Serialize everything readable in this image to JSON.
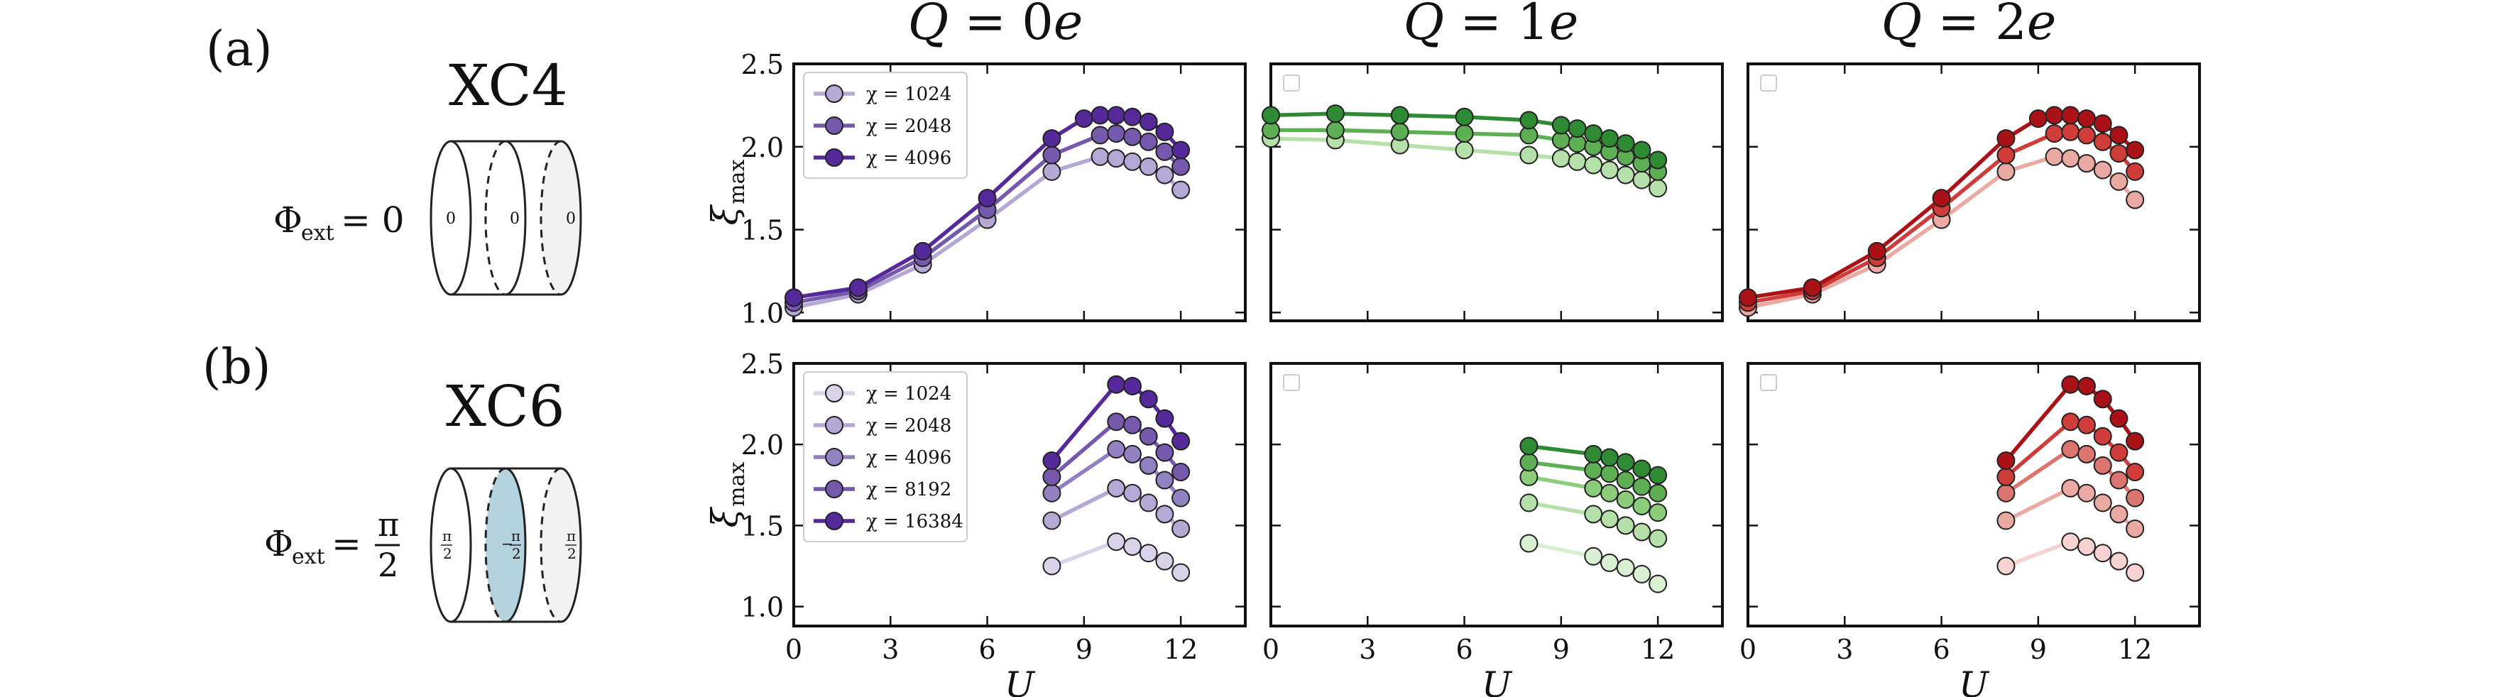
{
  "panels": {
    "a": {
      "label": "(a)",
      "lattice": "XC4",
      "flux_label": "Φ",
      "flux_sub": "ext",
      "flux_eq": "= 0",
      "ring_labels": [
        "0",
        "0",
        "0"
      ]
    },
    "b": {
      "label": "(b)",
      "lattice": "XC6",
      "flux_label": "Φ",
      "flux_sub": "ext",
      "flux_eq": "=",
      "flux_num": "π",
      "flux_den": "2",
      "ring_num": "π",
      "ring_den": "2",
      "ring_left_sign": "",
      "ring_mid_sign": "−",
      "ring_right_sign": ""
    }
  },
  "colors": {
    "purple": [
      "#d8d3e9",
      "#b4a8d4",
      "#9281c0",
      "#7559ac",
      "#55299a"
    ],
    "green": [
      "#d9efd1",
      "#b6e0a9",
      "#8ccd7c",
      "#5eaf53",
      "#2f8a34"
    ],
    "red": [
      "#f6d3d0",
      "#eba9a3",
      "#dc7570",
      "#cf3c3a",
      "#ab1217"
    ]
  },
  "axes": {
    "xlabel": "U",
    "ylabel": "ξ",
    "ylabel_sub": "max",
    "xticks": [
      "0",
      "3",
      "6",
      "9",
      "12"
    ],
    "yticks": [
      "1.0",
      "1.5",
      "2.0",
      "2.5"
    ]
  },
  "chart_data": [
    {
      "type": "line",
      "id": "a-q0",
      "title": "Q = 0e",
      "charge": "0e",
      "palette": "purple",
      "xlabel": "U",
      "ylabel": "ξ_max",
      "xlim": [
        0,
        14
      ],
      "ylim": [
        0.95,
        2.5
      ],
      "legend": "top-left",
      "series": [
        {
          "name": "χ = 1024",
          "shade": 1,
          "x": [
            0,
            2,
            4,
            6,
            8,
            9.5,
            10,
            10.5,
            11,
            11.5,
            12
          ],
          "y": [
            1.03,
            1.11,
            1.29,
            1.56,
            1.85,
            1.94,
            1.93,
            1.91,
            1.88,
            1.83,
            1.74
          ]
        },
        {
          "name": "χ = 2048",
          "shade": 3,
          "x": [
            0,
            2,
            4,
            6,
            8,
            9.5,
            10,
            10.5,
            11,
            11.5,
            12
          ],
          "y": [
            1.06,
            1.13,
            1.33,
            1.62,
            1.95,
            2.07,
            2.08,
            2.06,
            2.03,
            1.97,
            1.88
          ]
        },
        {
          "name": "χ = 4096",
          "shade": 4,
          "x": [
            0,
            2,
            4,
            6,
            8,
            9,
            9.5,
            10,
            10.5,
            11,
            11.5,
            12
          ],
          "y": [
            1.09,
            1.15,
            1.37,
            1.69,
            2.05,
            2.17,
            2.19,
            2.19,
            2.18,
            2.15,
            2.09,
            1.98
          ]
        }
      ]
    },
    {
      "type": "line",
      "id": "a-q1",
      "title": "Q = 1e",
      "charge": "1e",
      "palette": "green",
      "xlabel": "U",
      "ylabel": "ξ_max",
      "xlim": [
        0,
        14
      ],
      "ylim": [
        0.95,
        2.5
      ],
      "legend": "top-left (empty)",
      "series": [
        {
          "name": "χ = 1024",
          "shade": 1,
          "x": [
            0,
            2,
            4,
            6,
            8,
            9,
            9.5,
            10,
            10.5,
            11,
            11.5,
            12
          ],
          "y": [
            2.05,
            2.04,
            2.01,
            1.98,
            1.95,
            1.93,
            1.91,
            1.89,
            1.86,
            1.83,
            1.8,
            1.75
          ]
        },
        {
          "name": "χ = 2048",
          "shade": 3,
          "x": [
            0,
            2,
            4,
            6,
            8,
            9,
            9.5,
            10,
            10.5,
            11,
            11.5,
            12
          ],
          "y": [
            2.1,
            2.1,
            2.09,
            2.08,
            2.07,
            2.04,
            2.02,
            2.0,
            1.97,
            1.94,
            1.9,
            1.85
          ]
        },
        {
          "name": "χ = 4096",
          "shade": 4,
          "x": [
            0,
            2,
            4,
            6,
            8,
            9,
            9.5,
            10,
            10.5,
            11,
            11.5,
            12
          ],
          "y": [
            2.19,
            2.2,
            2.19,
            2.18,
            2.16,
            2.13,
            2.11,
            2.08,
            2.05,
            2.02,
            1.98,
            1.92
          ]
        }
      ]
    },
    {
      "type": "line",
      "id": "a-q2",
      "title": "Q = 2e",
      "charge": "2e",
      "palette": "red",
      "xlabel": "U",
      "ylabel": "ξ_max",
      "xlim": [
        0,
        14
      ],
      "ylim": [
        0.95,
        2.5
      ],
      "legend": "top-left (empty)",
      "series": [
        {
          "name": "χ = 1024",
          "shade": 1,
          "x": [
            0,
            2,
            4,
            6,
            8,
            9.5,
            10,
            10.5,
            11,
            11.5,
            12
          ],
          "y": [
            1.03,
            1.11,
            1.29,
            1.56,
            1.85,
            1.94,
            1.93,
            1.9,
            1.86,
            1.79,
            1.68
          ]
        },
        {
          "name": "χ = 2048",
          "shade": 3,
          "x": [
            0,
            2,
            4,
            6,
            8,
            9.5,
            10,
            10.5,
            11,
            11.5,
            12
          ],
          "y": [
            1.06,
            1.13,
            1.33,
            1.63,
            1.95,
            2.08,
            2.09,
            2.07,
            2.03,
            1.96,
            1.85
          ]
        },
        {
          "name": "χ = 4096",
          "shade": 4,
          "x": [
            0,
            2,
            4,
            6,
            8,
            9,
            9.5,
            10,
            10.5,
            11,
            11.5,
            12
          ],
          "y": [
            1.09,
            1.15,
            1.37,
            1.69,
            2.05,
            2.17,
            2.19,
            2.19,
            2.17,
            2.14,
            2.07,
            1.98
          ]
        }
      ]
    },
    {
      "type": "line",
      "id": "b-q0",
      "title": "",
      "charge": "0e",
      "palette": "purple",
      "xlabel": "U",
      "ylabel": "ξ_max",
      "xlim": [
        0,
        14
      ],
      "ylim": [
        0.88,
        2.5
      ],
      "legend": "top-left",
      "series": [
        {
          "name": "χ = 1024",
          "shade": 0,
          "x": [
            8,
            10,
            10.5,
            11,
            11.5,
            12
          ],
          "y": [
            1.25,
            1.4,
            1.37,
            1.33,
            1.28,
            1.21
          ]
        },
        {
          "name": "χ = 2048",
          "shade": 1,
          "x": [
            8,
            10,
            10.5,
            11,
            11.5,
            12
          ],
          "y": [
            1.53,
            1.73,
            1.7,
            1.64,
            1.57,
            1.48
          ]
        },
        {
          "name": "χ = 4096",
          "shade": 2,
          "x": [
            8,
            10,
            10.5,
            11,
            11.5,
            12
          ],
          "y": [
            1.7,
            1.97,
            1.94,
            1.87,
            1.78,
            1.67
          ]
        },
        {
          "name": "χ = 8192",
          "shade": 3,
          "x": [
            8,
            10,
            10.5,
            11,
            11.5,
            12
          ],
          "y": [
            1.8,
            2.14,
            2.12,
            2.05,
            1.95,
            1.83
          ]
        },
        {
          "name": "χ = 16384",
          "shade": 4,
          "x": [
            8,
            10,
            10.5,
            11,
            11.5,
            12
          ],
          "y": [
            1.9,
            2.37,
            2.36,
            2.28,
            2.16,
            2.02
          ]
        }
      ]
    },
    {
      "type": "line",
      "id": "b-q1",
      "title": "",
      "charge": "1e",
      "palette": "green",
      "xlabel": "U",
      "ylabel": "ξ_max",
      "xlim": [
        0,
        14
      ],
      "ylim": [
        0.88,
        2.5
      ],
      "legend": "top-left (empty)",
      "series": [
        {
          "name": "χ = 1024",
          "shade": 0,
          "x": [
            8,
            10,
            10.5,
            11,
            11.5,
            12
          ],
          "y": [
            1.39,
            1.31,
            1.27,
            1.24,
            1.2,
            1.14
          ]
        },
        {
          "name": "χ = 2048",
          "shade": 1,
          "x": [
            8,
            10,
            10.5,
            11,
            11.5,
            12
          ],
          "y": [
            1.64,
            1.57,
            1.54,
            1.5,
            1.46,
            1.42
          ]
        },
        {
          "name": "χ = 4096",
          "shade": 2,
          "x": [
            8,
            10,
            10.5,
            11,
            11.5,
            12
          ],
          "y": [
            1.8,
            1.73,
            1.7,
            1.66,
            1.62,
            1.58
          ]
        },
        {
          "name": "χ = 8192",
          "shade": 3,
          "x": [
            8,
            10,
            10.5,
            11,
            11.5,
            12
          ],
          "y": [
            1.89,
            1.84,
            1.82,
            1.78,
            1.74,
            1.7
          ]
        },
        {
          "name": "χ = 16384",
          "shade": 4,
          "x": [
            8,
            10,
            10.5,
            11,
            11.5,
            12
          ],
          "y": [
            1.99,
            1.94,
            1.92,
            1.89,
            1.85,
            1.81
          ]
        }
      ]
    },
    {
      "type": "line",
      "id": "b-q2",
      "title": "",
      "charge": "2e",
      "palette": "red",
      "xlabel": "U",
      "ylabel": "ξ_max",
      "xlim": [
        0,
        14
      ],
      "ylim": [
        0.88,
        2.5
      ],
      "legend": "top-left (empty)",
      "series": [
        {
          "name": "χ = 1024",
          "shade": 0,
          "x": [
            8,
            10,
            10.5,
            11,
            11.5,
            12
          ],
          "y": [
            1.25,
            1.4,
            1.37,
            1.33,
            1.28,
            1.21
          ]
        },
        {
          "name": "χ = 2048",
          "shade": 1,
          "x": [
            8,
            10,
            10.5,
            11,
            11.5,
            12
          ],
          "y": [
            1.53,
            1.73,
            1.7,
            1.64,
            1.57,
            1.48
          ]
        },
        {
          "name": "χ = 4096",
          "shade": 2,
          "x": [
            8,
            10,
            10.5,
            11,
            11.5,
            12
          ],
          "y": [
            1.7,
            1.97,
            1.94,
            1.87,
            1.78,
            1.67
          ]
        },
        {
          "name": "χ = 8192",
          "shade": 3,
          "x": [
            8,
            10,
            10.5,
            11,
            11.5,
            12
          ],
          "y": [
            1.8,
            2.14,
            2.12,
            2.05,
            1.95,
            1.83
          ]
        },
        {
          "name": "χ = 16384",
          "shade": 4,
          "x": [
            8,
            10,
            10.5,
            11,
            11.5,
            12
          ],
          "y": [
            1.9,
            2.37,
            2.36,
            2.28,
            2.16,
            2.02
          ]
        }
      ]
    }
  ]
}
